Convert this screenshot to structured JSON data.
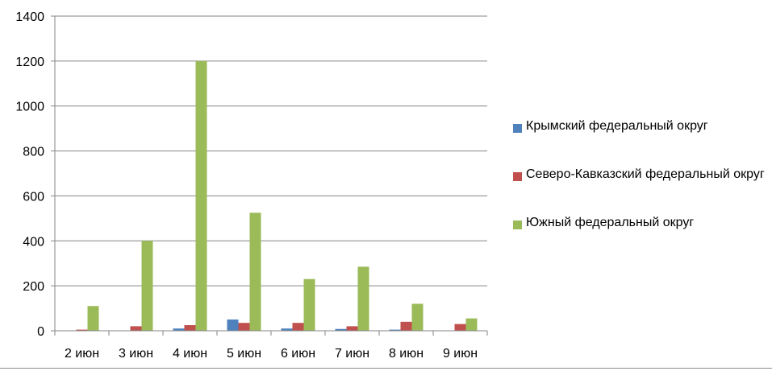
{
  "chart_data": {
    "type": "bar",
    "categories": [
      "2 июн",
      "3 июн",
      "4 июн",
      "5 июн",
      "6 июн",
      "7 июн",
      "8 июн",
      "9 июн"
    ],
    "series": [
      {
        "name": "Крымский федеральный округ",
        "color": "#4f81bd",
        "values": [
          0,
          0,
          10,
          50,
          10,
          8,
          5,
          0
        ]
      },
      {
        "name": "Северо-Кавказский федеральный округ",
        "color": "#c0504d",
        "values": [
          5,
          20,
          25,
          35,
          35,
          20,
          40,
          30
        ]
      },
      {
        "name": "Южный федеральный округ",
        "color": "#9bbb59",
        "values": [
          110,
          400,
          1200,
          525,
          230,
          285,
          120,
          55
        ]
      }
    ],
    "yticks": [
      "0",
      "200",
      "400",
      "600",
      "800",
      "1000",
      "1200",
      "1400"
    ],
    "ylim": [
      0,
      1400
    ],
    "grid": true,
    "legend_position": "right"
  }
}
